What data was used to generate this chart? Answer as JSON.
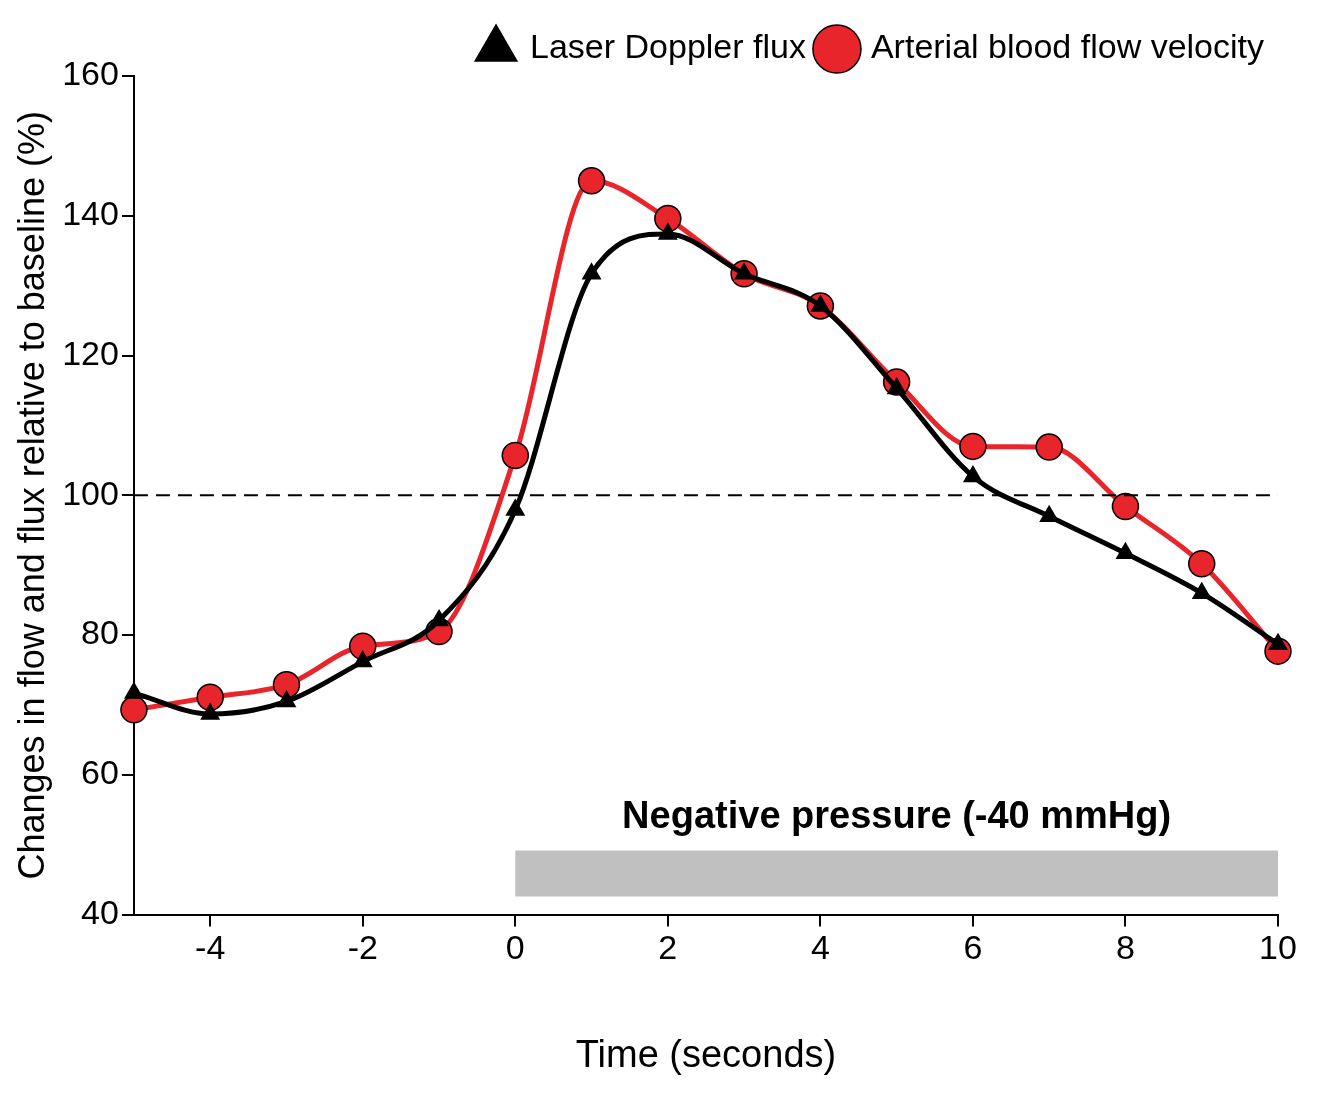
{
  "chart_data": {
    "type": "line",
    "xlabel": "Time (seconds)",
    "ylabel": "Changes in flow and flux relative to baseline (%)",
    "x": [
      -5,
      -4,
      -3,
      -2,
      -1,
      0,
      1,
      2,
      3,
      4,
      5,
      6,
      7,
      8,
      9,
      10
    ],
    "series": [
      {
        "name": "Laser Doppler flux",
        "color": "#000000",
        "marker": "triangle",
        "values": [
          71.7,
          68.7,
          70.5,
          76.2,
          82.1,
          97.9,
          131.7,
          137.4,
          131.7,
          127.1,
          115.3,
          102.7,
          97.0,
          91.7,
          86.0,
          78.7
        ]
      },
      {
        "name": "Arterial blood flow velocity",
        "color": "#e8252a",
        "marker": "circle",
        "values": [
          69.3,
          71.1,
          72.9,
          78.4,
          80.5,
          105.7,
          145.0,
          139.6,
          131.7,
          127.1,
          116.2,
          107.0,
          106.9,
          98.4,
          90.2,
          77.7
        ]
      }
    ],
    "xlim": [
      -5,
      10
    ],
    "xticks": [
      -4,
      -2,
      0,
      2,
      4,
      6,
      8,
      10
    ],
    "ylim": [
      40,
      160
    ],
    "yticks": [
      40,
      60,
      80,
      100,
      120,
      140,
      160
    ],
    "ref_lines": [
      {
        "axis": "y",
        "value": 100,
        "line_style": "dashed",
        "color": "#000000"
      }
    ],
    "bands": [
      {
        "axis": "x",
        "from": 0,
        "to": 10,
        "label": "Negative pressure (-40 mmHg)",
        "color": "#c0c0c0"
      }
    ],
    "grid": false,
    "legend": "top right",
    "line_style": "solid"
  }
}
